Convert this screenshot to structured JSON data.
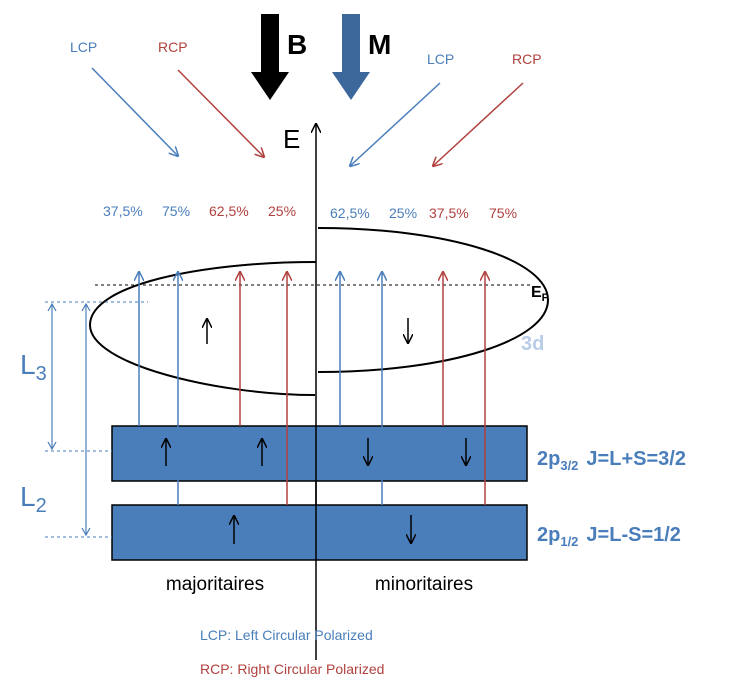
{
  "field_labels": {
    "b": "B",
    "m": "M"
  },
  "polarizations": {
    "left_lcp": "LCP",
    "left_rcp": "RCP",
    "right_lcp": "LCP",
    "right_rcp": "RCP"
  },
  "energy_axis_label": "E",
  "percentages": {
    "maj_lcp_a": "37,5%",
    "maj_lcp_b": "75%",
    "maj_rcp_a": "62,5%",
    "maj_rcp_b": "25%",
    "min_lcp_a": "62,5%",
    "min_lcp_b": "25%",
    "min_rcp_a": "37,5%",
    "min_rcp_b": "75%"
  },
  "fermi": {
    "main": "E",
    "sub": "F"
  },
  "band_3d": "3d",
  "edges": {
    "l3_main": "L",
    "l3_sub": "3",
    "l2_main": "L",
    "l2_sub": "2"
  },
  "levels": {
    "p32": {
      "prefix": "2p",
      "sub": "3/2",
      "rule": "J=L+S=3/2"
    },
    "p12": {
      "prefix": "2p",
      "sub": "1/2",
      "rule": "J=L-S=1/2"
    }
  },
  "spin_labels": {
    "majority": "majoritaires",
    "minority": "minoritaires"
  },
  "legend": {
    "lcp": "LCP: Left Circular Polarized",
    "rcp": "RCP: Right Circular Polarized"
  },
  "colors": {
    "lcp": "#4a7ebb",
    "rcp": "#b0413e",
    "core_box": "#4a7ebb",
    "m_arrow": "#3b679a",
    "label_3d": "#b9cde8"
  }
}
